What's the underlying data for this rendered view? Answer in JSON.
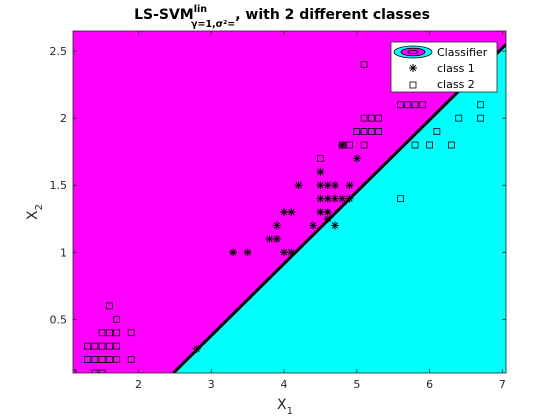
{
  "chart_data": {
    "type": "scatter",
    "title": {
      "prefix": "LS-SVM",
      "superscript": "lin",
      "subscript": "γ=1,σ²=",
      "suffix": ", with 2 different classes"
    },
    "xlabel": {
      "main": "X",
      "sub": "1"
    },
    "ylabel": {
      "main": "X",
      "sub": "2"
    },
    "xlim": [
      1.1,
      7.05
    ],
    "ylim": [
      0.1,
      2.65
    ],
    "xticks": [
      2,
      3,
      4,
      5,
      6,
      7
    ],
    "yticks": [
      0.5,
      1,
      1.5,
      2,
      2.5
    ],
    "grid": false,
    "legend_position": "top-right",
    "legend": [
      "Classifier",
      "class 1",
      "class 2"
    ],
    "colors": {
      "region_class1": "#ff00ff",
      "region_class2": "#00ffff",
      "boundary": "#000000",
      "markers": "#000000"
    },
    "decision_boundary": [
      [
        2.48,
        0.1
      ],
      [
        7.05,
        2.55
      ]
    ],
    "series": [
      {
        "name": "class 1",
        "marker": "asterisk",
        "points": [
          [
            3.3,
            1.0
          ],
          [
            3.5,
            1.0
          ],
          [
            3.8,
            1.1
          ],
          [
            3.9,
            1.1
          ],
          [
            3.9,
            1.2
          ],
          [
            4.0,
            1.3
          ],
          [
            4.1,
            1.3
          ],
          [
            4.0,
            1.0
          ],
          [
            4.1,
            1.0
          ],
          [
            4.2,
            1.5
          ],
          [
            4.4,
            1.2
          ],
          [
            4.5,
            1.3
          ],
          [
            4.5,
            1.5
          ],
          [
            4.5,
            1.4
          ],
          [
            4.5,
            1.6
          ],
          [
            4.6,
            1.5
          ],
          [
            4.6,
            1.4
          ],
          [
            4.6,
            1.3
          ],
          [
            4.7,
            1.4
          ],
          [
            4.7,
            1.2
          ],
          [
            4.7,
            1.5
          ],
          [
            4.8,
            1.8
          ],
          [
            4.8,
            1.4
          ],
          [
            4.9,
            1.5
          ],
          [
            4.9,
            1.4
          ],
          [
            5.0,
            1.7
          ],
          [
            4.6,
            1.25
          ],
          [
            2.8,
            0.28
          ]
        ]
      },
      {
        "name": "class 2",
        "marker": "square",
        "points": [
          [
            1.1,
            0.1
          ],
          [
            1.3,
            0.2
          ],
          [
            1.3,
            0.3
          ],
          [
            1.4,
            0.1
          ],
          [
            1.4,
            0.2
          ],
          [
            1.4,
            0.3
          ],
          [
            1.5,
            0.1
          ],
          [
            1.5,
            0.2
          ],
          [
            1.5,
            0.3
          ],
          [
            1.5,
            0.4
          ],
          [
            1.6,
            0.2
          ],
          [
            1.6,
            0.3
          ],
          [
            1.6,
            0.4
          ],
          [
            1.6,
            0.6
          ],
          [
            1.7,
            0.2
          ],
          [
            1.7,
            0.3
          ],
          [
            1.7,
            0.4
          ],
          [
            1.7,
            0.5
          ],
          [
            1.9,
            0.2
          ],
          [
            1.9,
            0.4
          ],
          [
            4.5,
            1.7
          ],
          [
            4.8,
            1.8
          ],
          [
            4.9,
            1.8
          ],
          [
            5.0,
            1.9
          ],
          [
            5.1,
            1.8
          ],
          [
            5.1,
            2.0
          ],
          [
            5.1,
            1.9
          ],
          [
            5.1,
            2.4
          ],
          [
            5.2,
            2.0
          ],
          [
            5.2,
            1.9
          ],
          [
            5.3,
            1.9
          ],
          [
            5.3,
            2.0
          ],
          [
            5.6,
            2.1
          ],
          [
            5.6,
            1.4
          ],
          [
            5.7,
            2.1
          ],
          [
            5.8,
            2.1
          ],
          [
            5.8,
            1.8
          ],
          [
            5.9,
            2.1
          ],
          [
            6.0,
            1.8
          ],
          [
            6.1,
            1.9
          ],
          [
            6.3,
            1.8
          ],
          [
            6.4,
            2.0
          ],
          [
            6.7,
            2.0
          ],
          [
            6.7,
            2.1
          ]
        ]
      }
    ]
  }
}
